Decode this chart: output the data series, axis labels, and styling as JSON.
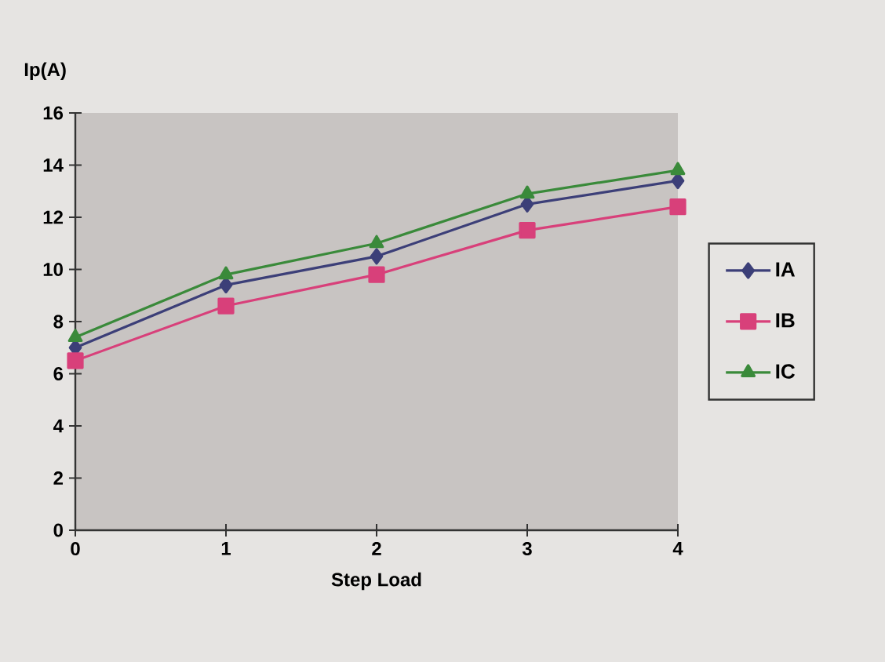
{
  "chart_data": {
    "type": "line",
    "xlabel": "Step Load",
    "ylabel": "Ip(A)",
    "x": [
      0,
      1,
      2,
      3,
      4
    ],
    "xlim": [
      0,
      4
    ],
    "xticks": [
      0,
      1,
      2,
      3,
      4
    ],
    "ylim": [
      0,
      16
    ],
    "yticks": [
      0,
      2,
      4,
      6,
      8,
      10,
      12,
      14,
      16
    ],
    "grid": false,
    "legend": "right",
    "line_style": "solid",
    "series": [
      {
        "name": "IA",
        "color": "#3c3f78",
        "marker": "diamond",
        "values": [
          7.0,
          9.4,
          10.5,
          12.5,
          13.4
        ]
      },
      {
        "name": "IB",
        "color": "#d8407a",
        "marker": "square",
        "values": [
          6.5,
          8.6,
          9.8,
          11.5,
          12.4
        ]
      },
      {
        "name": "IC",
        "color": "#3a8a3a",
        "marker": "triangle",
        "values": [
          7.4,
          9.8,
          11.0,
          12.9,
          13.8
        ]
      }
    ]
  }
}
